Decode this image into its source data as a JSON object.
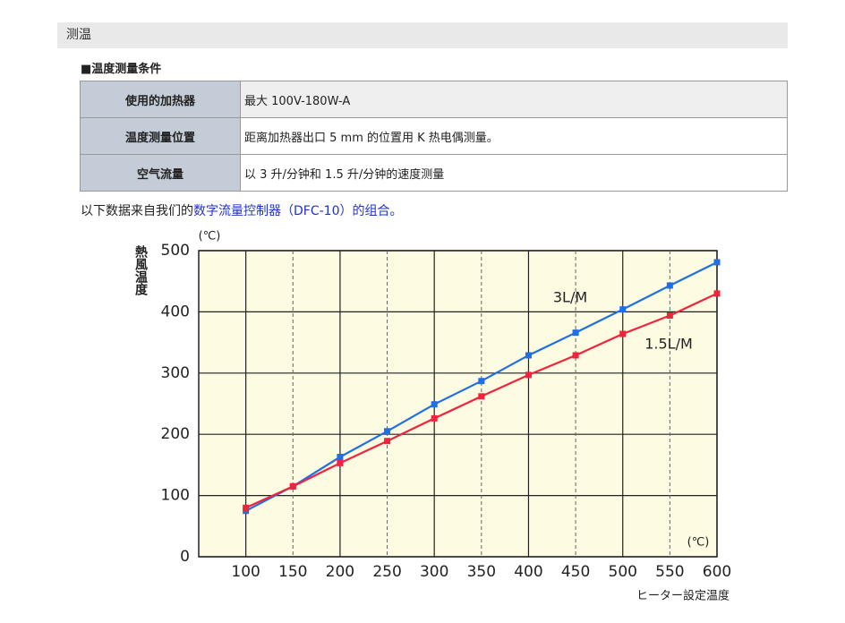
{
  "header": {
    "title": "测温"
  },
  "section": {
    "title": "■温度测量条件"
  },
  "table": {
    "rows": [
      [
        "使用的加热器",
        "最大 100V-180W-A"
      ],
      [
        "温度测量位置",
        "距离加热器出口 5 mm 的位置用 K 热电偶测量。"
      ],
      [
        "空气流量",
        "以 3 升/分钟和 1.5 升/分钟的速度测量"
      ]
    ]
  },
  "paragraph": {
    "text": "以下数据来自我们的",
    "link": "数字流量控制器（DFC-10）的组合。"
  },
  "chart_data": {
    "type": "line",
    "y_label": "熱風温度",
    "y_unit": "(℃)",
    "x_unit": "(℃)",
    "x_label": "ヒーター設定温度",
    "x": [
      100,
      150,
      200,
      250,
      300,
      350,
      400,
      450,
      500,
      550,
      600
    ],
    "series": [
      {
        "name": "3L/M",
        "color": "#1f6fe8",
        "values": [
          75,
          115,
          163,
          205,
          249,
          287,
          329,
          366,
          404,
          443,
          481
        ]
      },
      {
        "name": "1.5L/M",
        "color": "#f0243c",
        "values": [
          80,
          115,
          153,
          189,
          226,
          262,
          297,
          329,
          364,
          394,
          430
        ]
      }
    ],
    "xlim": [
      50,
      600
    ],
    "ylim": [
      0,
      500
    ],
    "xticks": [
      100,
      150,
      200,
      250,
      300,
      350,
      400,
      450,
      500,
      550,
      600
    ],
    "yticks": [
      0,
      100,
      200,
      300,
      400,
      500
    ],
    "grid": true
  }
}
